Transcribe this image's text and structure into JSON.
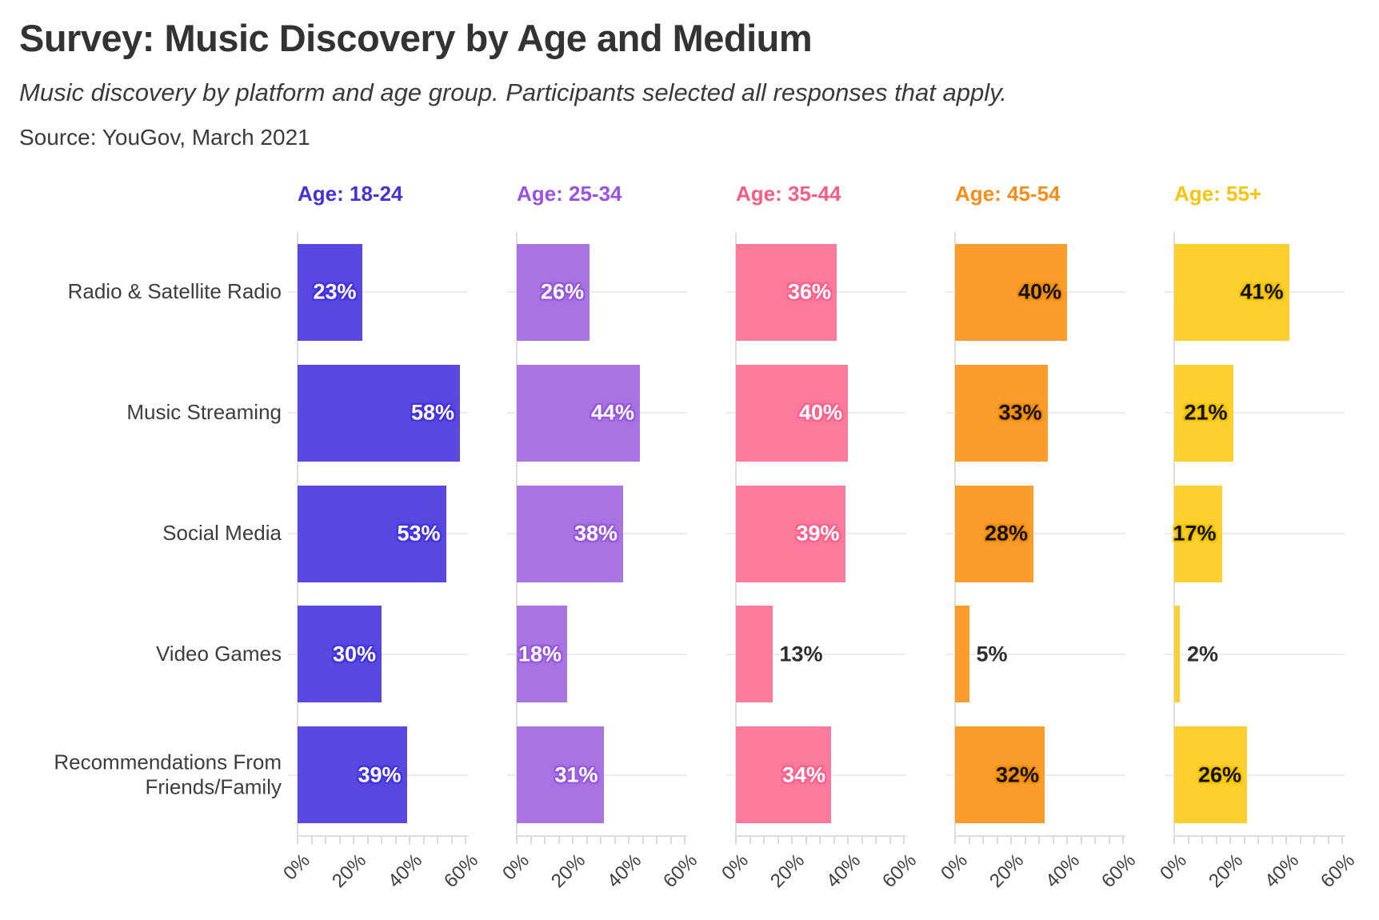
{
  "header": {
    "title": "Survey: Music Discovery by Age and Medium",
    "subtitle": "Music discovery by platform and age group. Participants selected all responses that apply.",
    "source": "Source: YouGov, March 2021"
  },
  "chart_data": {
    "type": "bar",
    "orientation": "horizontal",
    "title": "Survey: Music Discovery by Age and Medium",
    "subtitle": "Music discovery by platform and age group. Participants selected all responses that apply.",
    "source": "Source: YouGov, March 2021",
    "categories": [
      "Radio & Satellite Radio",
      "Music Streaming",
      "Social Media",
      "Video Games",
      "Recommendations From Friends/Family"
    ],
    "series": [
      {
        "name": "Age: 18-24",
        "values": [
          23,
          58,
          53,
          30,
          39
        ],
        "bar_color": "#5a49e0",
        "header_color": "#4630d8",
        "value_text_color": "#ffffff",
        "value_glow_color": "#4433dd"
      },
      {
        "name": "Age: 25-34",
        "values": [
          26,
          44,
          38,
          18,
          31
        ],
        "bar_color": "#a974e2",
        "header_color": "#9c51e5",
        "value_text_color": "#ffffff",
        "value_glow_color": "#9757dd"
      },
      {
        "name": "Age: 35-44",
        "values": [
          36,
          40,
          39,
          13,
          34
        ],
        "bar_color": "#fb7b9d",
        "header_color": "#f95c83",
        "value_text_color": "#ffffff",
        "value_glow_color": "#f9628b"
      },
      {
        "name": "Age: 45-54",
        "values": [
          40,
          33,
          28,
          5,
          32
        ],
        "bar_color": "#fa9d2d",
        "header_color": "#f78d19",
        "value_text_color": "#111111",
        "value_glow_color": "#ef8b0c"
      },
      {
        "name": "Age: 55+",
        "values": [
          41,
          21,
          17,
          2,
          26
        ],
        "bar_color": "#fdd02f",
        "header_color": "#f9c40d",
        "value_text_color": "#111111",
        "value_glow_color": "#f0c000"
      }
    ],
    "value_suffix": "%",
    "x_axis": {
      "tick_labels": [
        "0%",
        "20%",
        "40%",
        "60%"
      ],
      "tick_values": [
        0,
        20,
        40,
        60
      ],
      "minor_tick_step_pct": 5,
      "range_pct": [
        0,
        60
      ]
    },
    "legend": "none",
    "grid": "horizontal gridline per category row, light gray",
    "background_color": "#ffffff"
  }
}
